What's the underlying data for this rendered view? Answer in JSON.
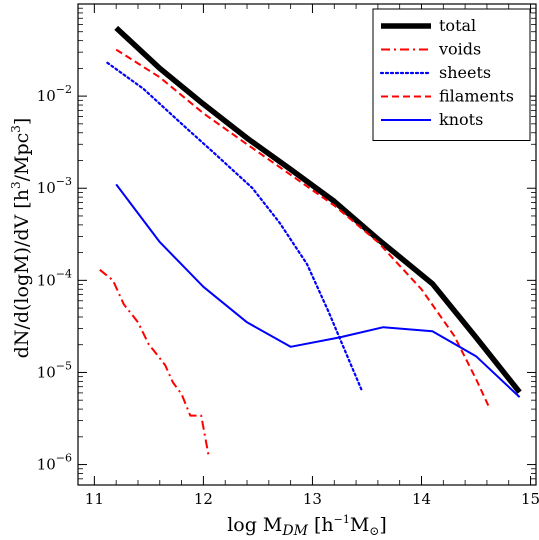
{
  "chart_data": {
    "type": "line",
    "xlabel": "log M_DM [h^-1 M_sun]",
    "ylabel": "dN/d(logM)/dV [h^3/Mpc^3]",
    "xscale": "linear",
    "yscale": "log",
    "xlim": [
      10.85,
      15.05
    ],
    "ylim": [
      6e-07,
      0.1
    ],
    "xticks": [
      "11",
      "12",
      "13",
      "14",
      "15"
    ],
    "yticks": [
      {
        "value": 1e-06,
        "mantissa": "10",
        "exp": "−6"
      },
      {
        "value": 1e-05,
        "mantissa": "10",
        "exp": "−5"
      },
      {
        "value": 0.0001,
        "mantissa": "10",
        "exp": "−4"
      },
      {
        "value": 0.001,
        "mantissa": "10",
        "exp": "−3"
      },
      {
        "value": 0.01,
        "mantissa": "10",
        "exp": "−2"
      }
    ],
    "grid": false,
    "legend_position": "top-right",
    "series": [
      {
        "name": "total",
        "color": "#000000",
        "style": "solid",
        "points": [
          [
            11.2,
            0.055
          ],
          [
            11.6,
            0.02
          ],
          [
            12.0,
            0.0082
          ],
          [
            12.4,
            0.0035
          ],
          [
            12.8,
            0.0016
          ],
          [
            13.2,
            0.00072
          ],
          [
            13.6,
            0.00028
          ],
          [
            14.1,
            9.2e-05
          ],
          [
            14.5,
            2.4e-05
          ],
          [
            14.9,
            6.1e-06
          ]
        ]
      },
      {
        "name": "voids",
        "color": "#ff0000",
        "style": "dashdot",
        "points": [
          [
            11.05,
            0.00013
          ],
          [
            11.17,
            0.0001
          ],
          [
            11.27,
            5.5e-05
          ],
          [
            11.4,
            3.5e-05
          ],
          [
            11.5,
            2e-05
          ],
          [
            11.55,
            1.7e-05
          ],
          [
            11.65,
            1.2e-05
          ],
          [
            11.72,
            7.8e-06
          ],
          [
            11.8,
            5.8e-06
          ],
          [
            11.88,
            3.4e-06
          ],
          [
            11.98,
            3.4e-06
          ],
          [
            12.05,
            1.2e-06
          ]
        ]
      },
      {
        "name": "sheets",
        "color": "#0000ff",
        "style": "dotted",
        "points": [
          [
            11.12,
            0.023
          ],
          [
            11.45,
            0.012
          ],
          [
            11.8,
            0.005
          ],
          [
            12.1,
            0.0024
          ],
          [
            12.45,
            0.001
          ],
          [
            12.7,
            0.00042
          ],
          [
            12.95,
            0.00015
          ],
          [
            13.15,
            4.5e-05
          ],
          [
            13.3,
            1.7e-05
          ],
          [
            13.45,
            6.5e-06
          ]
        ]
      },
      {
        "name": "filaments",
        "color": "#ff0000",
        "style": "dashed",
        "points": [
          [
            11.2,
            0.032
          ],
          [
            11.6,
            0.016
          ],
          [
            12.0,
            0.0065
          ],
          [
            12.4,
            0.003
          ],
          [
            12.8,
            0.0014
          ],
          [
            13.2,
            0.00065
          ],
          [
            13.6,
            0.00026
          ],
          [
            14.0,
            8e-05
          ],
          [
            14.3,
            2.5e-05
          ],
          [
            14.5,
            8.5e-06
          ],
          [
            14.62,
            4.2e-06
          ]
        ]
      },
      {
        "name": "knots",
        "color": "#0000ff",
        "style": "solid",
        "points": [
          [
            11.2,
            0.0011
          ],
          [
            11.6,
            0.00026
          ],
          [
            12.0,
            8.5e-05
          ],
          [
            12.4,
            3.5e-05
          ],
          [
            12.8,
            1.9e-05
          ],
          [
            13.25,
            2.4e-05
          ],
          [
            13.65,
            3.1e-05
          ],
          [
            14.1,
            2.8e-05
          ],
          [
            14.5,
            1.5e-05
          ],
          [
            14.9,
            5.4e-06
          ]
        ]
      }
    ]
  }
}
